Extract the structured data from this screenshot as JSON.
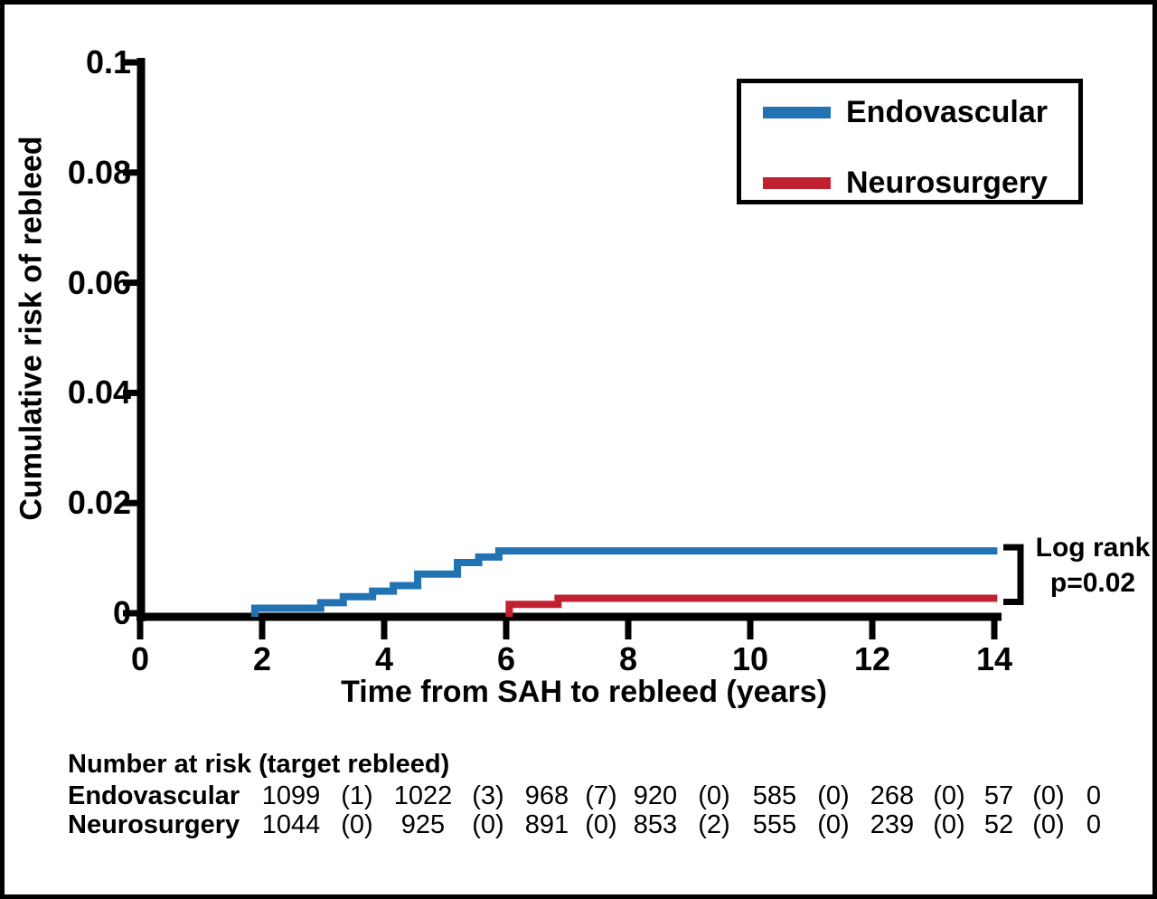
{
  "chart_data": {
    "type": "line",
    "subtype": "kaplan-meier-cumulative-incidence-step",
    "title": "",
    "xlabel": "Time from SAH to rebleed (years)",
    "ylabel": "Cumulative risk of rebleed",
    "x_ticks": [
      "0",
      "2",
      "4",
      "6",
      "8",
      "10",
      "12",
      "14"
    ],
    "y_ticks": [
      "0",
      "0.02",
      "0.04",
      "0.06",
      "0.08",
      "0.1"
    ],
    "xlim": [
      0,
      14.15
    ],
    "ylim": [
      0,
      0.1
    ],
    "grid": false,
    "legend_position": "top-right",
    "series": [
      {
        "name": "Endovascular",
        "color": "#2173B4",
        "steps": [
          [
            1.88,
            0.0009
          ],
          [
            2.96,
            0.0019
          ],
          [
            3.33,
            0.003
          ],
          [
            3.81,
            0.004
          ],
          [
            4.15,
            0.005
          ],
          [
            4.55,
            0.0071
          ],
          [
            5.2,
            0.0092
          ],
          [
            5.55,
            0.0102
          ],
          [
            5.88,
            0.0113
          ]
        ],
        "end_x": 14.05
      },
      {
        "name": "Neurosurgery",
        "color": "#C12031",
        "steps": [
          [
            6.05,
            0.0016
          ],
          [
            6.85,
            0.0027
          ]
        ],
        "end_x": 14.05
      }
    ],
    "annotation": {
      "line1": "Log rank",
      "line2": "p=0.02"
    }
  },
  "legend": {
    "items": [
      {
        "label": "Endovascular",
        "color": "#2173B4"
      },
      {
        "label": "Neurosurgery",
        "color": "#C12031"
      }
    ]
  },
  "at_risk": {
    "header": "Number at risk (target rebleed)",
    "rows": [
      {
        "label": "Endovascular",
        "values": [
          "1099",
          "(1)",
          "1022",
          "(3)",
          "968",
          "(7)",
          "920",
          "(0)",
          "585",
          "(0)",
          "268",
          "(0)",
          "57",
          "(0)",
          "0"
        ]
      },
      {
        "label": "Neurosurgery",
        "values": [
          "1044",
          "(0)",
          "925",
          "(0)",
          "891",
          "(0)",
          "853",
          "(2)",
          "555",
          "(0)",
          "239",
          "(0)",
          "52",
          "(0)",
          "0"
        ]
      }
    ]
  }
}
